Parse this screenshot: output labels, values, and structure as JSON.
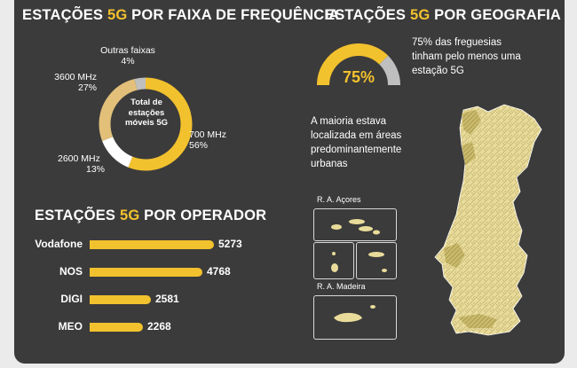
{
  "colors": {
    "background": "#3b3b3b",
    "accent": "#f2c12e",
    "text": "#ffffff",
    "muted_slice": "#bfbfbf",
    "light_slice": "#e2c07a",
    "white_slice": "#ffffff",
    "map_fill": "#e9dc9a"
  },
  "frequency": {
    "title_pre": "ESTAÇÕES ",
    "title_accent": "5G",
    "title_post": " POR FAIXA DE FREQUÊNCIA",
    "center_label": "Total de estações móveis 5G",
    "slices": [
      {
        "name": "700 MHz",
        "pct_label": "56%"
      },
      {
        "name": "2600 MHz",
        "pct_label": "13%"
      },
      {
        "name": "3600 MHz",
        "pct_label": "27%"
      },
      {
        "name": "Outras faixas",
        "pct_label": "4%"
      }
    ]
  },
  "operator": {
    "title_pre": "ESTAÇÕES ",
    "title_accent": "5G",
    "title_post": " POR OPERADOR",
    "value_labels": [
      "5273",
      "4768",
      "2581",
      "2268"
    ]
  },
  "geography": {
    "title_pre": "ESTAÇÕES ",
    "title_accent": "5G",
    "title_post": " POR GEOGRAFIA",
    "gauge_label": "75%",
    "gauge_note": "75% das freguesias tinham pelo menos uma estação 5G",
    "urban_note": "A maioria estava localizada em áreas predominantemente urbanas",
    "azores_label": "R. A. Açores",
    "madeira_label": "R. A. Madeira"
  },
  "chart_data": [
    {
      "type": "pie",
      "title": "ESTAÇÕES 5G POR FAIXA DE FREQUÊNCIA",
      "center_label": "Total de estações móveis 5G",
      "categories": [
        "700 MHz",
        "2600 MHz",
        "3600 MHz",
        "Outras faixas"
      ],
      "values": [
        56,
        13,
        27,
        4
      ],
      "colors": [
        "#f2c12e",
        "#ffffff",
        "#e2c07a",
        "#bfbfbf"
      ]
    },
    {
      "type": "bar",
      "orientation": "horizontal",
      "title": "ESTAÇÕES 5G POR OPERADOR",
      "categories": [
        "Vodafone",
        "NOS",
        "DIGI",
        "MEO"
      ],
      "values": [
        5273,
        4768,
        2581,
        2268
      ]
    },
    {
      "type": "gauge",
      "title": "ESTAÇÕES 5G POR GEOGRAFIA",
      "value": 75,
      "max": 100,
      "label": "75%"
    }
  ]
}
